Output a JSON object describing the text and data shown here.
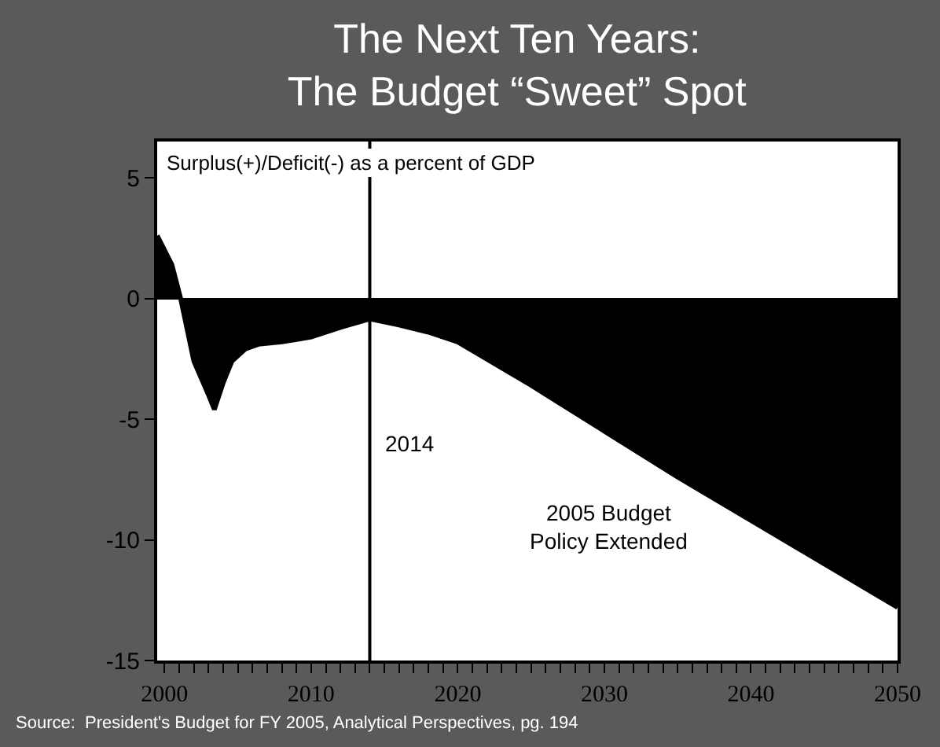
{
  "chart_data": {
    "type": "area",
    "title": "The Next Ten Years:\nThe Budget “Sweet” Spot",
    "subtitle": "Surplus(+)/Deficit(-) as a percent of GDP",
    "x": [
      1999.5,
      2000.5,
      2001.1,
      2002,
      2003,
      2003.4,
      2004,
      2004.6,
      2005.5,
      2006.4,
      2008,
      2009,
      2010,
      2012,
      2014,
      2016,
      2018,
      2020,
      2025,
      2030,
      2035,
      2040,
      2045,
      2050
    ],
    "series": [
      {
        "color": "#000000",
        "values": [
          2.6,
          1.4,
          0,
          -2.6,
          -4.0,
          -4.6,
          -3.5,
          -2.6,
          -2.1,
          -1.9,
          -1.8,
          -1.7,
          -1.6,
          -1.2,
          -0.85,
          -1.1,
          -1.4,
          -1.8,
          -3.6,
          -5.5,
          -7.4,
          -9.2,
          -11.0,
          -12.8
        ]
      }
    ],
    "xlim": [
      1999.5,
      2050
    ],
    "ylim": [
      -15,
      6.5
    ],
    "yticks": [
      -15,
      -10,
      -5,
      0,
      5
    ],
    "xticks": [
      2000,
      {
        "value": 2001,
        "label": null
      },
      {
        "value": 2002,
        "label": null
      },
      {
        "value": 2003,
        "label": null
      },
      {
        "value": 2004,
        "label": null
      },
      {
        "value": 2005,
        "label": null
      },
      {
        "value": 2006,
        "label": null
      },
      {
        "value": 2007,
        "label": null
      },
      {
        "value": 2008,
        "label": null
      },
      {
        "value": 2009,
        "label": null
      },
      2010,
      {
        "value": 2011,
        "label": null
      },
      {
        "value": 2012,
        "label": null
      },
      {
        "value": 2013,
        "label": null
      },
      {
        "value": 2014,
        "label": null
      },
      {
        "value": 2015,
        "label": null
      },
      {
        "value": 2016,
        "label": null
      },
      {
        "value": 2017,
        "label": null
      },
      {
        "value": 2018,
        "label": null
      },
      {
        "value": 2019,
        "label": null
      },
      2020,
      {
        "value": 2021,
        "label": null
      },
      {
        "value": 2022,
        "label": null
      },
      {
        "value": 2023,
        "label": null
      },
      {
        "value": 2024,
        "label": null
      },
      {
        "value": 2025,
        "label": null
      },
      {
        "value": 2026,
        "label": null
      },
      {
        "value": 2027,
        "label": null
      },
      {
        "value": 2028,
        "label": null
      },
      {
        "value": 2029,
        "label": null
      },
      2030,
      {
        "value": 2031,
        "label": null
      },
      {
        "value": 2032,
        "label": null
      },
      {
        "value": 2033,
        "label": null
      },
      {
        "value": 2034,
        "label": null
      },
      {
        "value": 2035,
        "label": null
      },
      {
        "value": 2036,
        "label": null
      },
      {
        "value": 2037,
        "label": null
      },
      {
        "value": 2038,
        "label": null
      },
      {
        "value": 2039,
        "label": null
      },
      2040,
      {
        "value": 2041,
        "label": null
      },
      {
        "value": 2042,
        "label": null
      },
      {
        "value": 2043,
        "label": null
      },
      {
        "value": 2044,
        "label": null
      },
      {
        "value": 2045,
        "label": null
      },
      {
        "value": 2046,
        "label": null
      },
      {
        "value": 2047,
        "label": null
      },
      {
        "value": 2048,
        "label": null
      },
      {
        "value": 2049,
        "label": null
      },
      2050
    ],
    "ref_lines": [
      {
        "axis": "x",
        "value": 2014,
        "label": "2014",
        "color": "#000000"
      }
    ],
    "annotations": [
      "2005 Budget\nPolicy Extended",
      "Source:  President's Budget for FY 2005, Analytical Perspectives, pg. 194"
    ],
    "legend": false
  }
}
